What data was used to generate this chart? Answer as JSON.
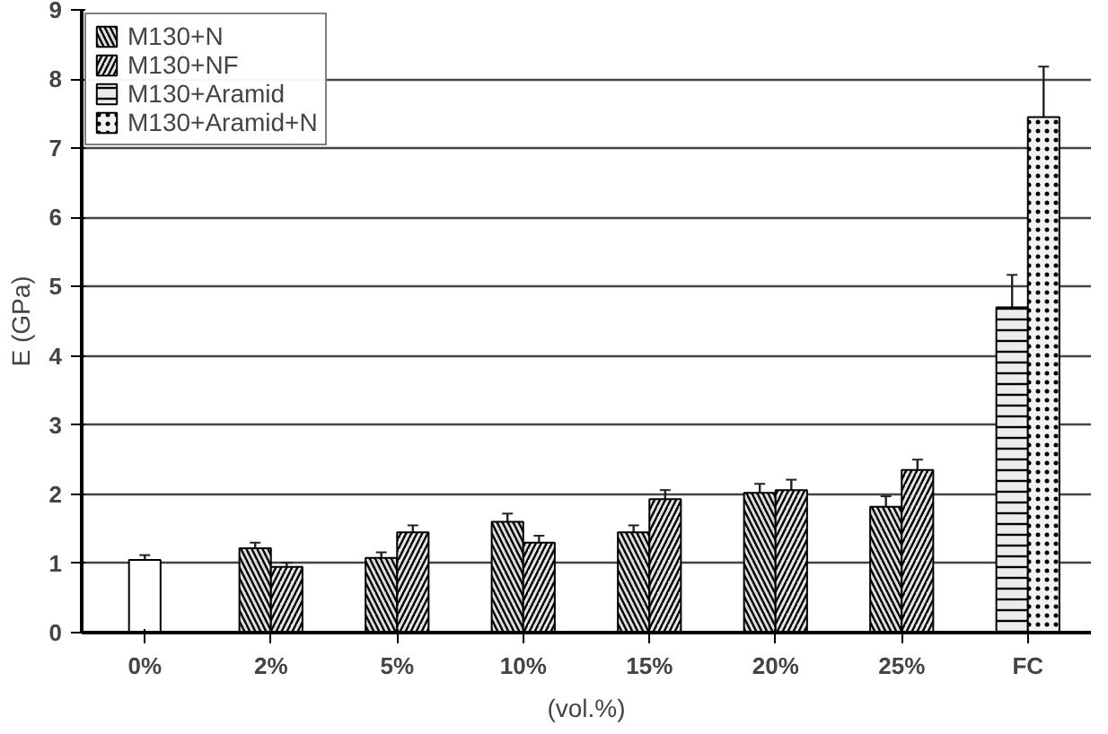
{
  "chart_data": {
    "type": "bar",
    "xlabel": "(vol.%)",
    "ylabel": "E (GPa)",
    "categories": [
      "0%",
      "2%",
      "5%",
      "10%",
      "15%",
      "20%",
      "25%",
      "FC"
    ],
    "series": [
      {
        "color": "#ffffff",
        "values": [
          1.05,
          null,
          null,
          null,
          null,
          null,
          null,
          null
        ],
        "errors": [
          0.07,
          null,
          null,
          null,
          null,
          null,
          null,
          null
        ]
      },
      {
        "name": "M130+N",
        "color": "#dcdcdc",
        "values": [
          null,
          1.22,
          1.08,
          1.6,
          1.45,
          2.02,
          1.82,
          null
        ],
        "errors": [
          null,
          0.08,
          0.08,
          0.12,
          0.1,
          0.13,
          0.15,
          null
        ]
      },
      {
        "name": "M130+NF",
        "color": "#e4e4e4",
        "values": [
          null,
          0.95,
          1.45,
          1.3,
          1.93,
          2.06,
          2.35,
          null
        ],
        "errors": [
          null,
          0.06,
          0.1,
          0.1,
          0.13,
          0.15,
          0.15,
          null
        ]
      },
      {
        "name": "M130+Aramid",
        "color": "#ececec",
        "values": [
          null,
          null,
          null,
          null,
          null,
          null,
          null,
          4.7
        ],
        "errors": [
          null,
          null,
          null,
          null,
          null,
          null,
          null,
          0.47
        ]
      },
      {
        "name": "M130+Aramid+N",
        "color": "#f2f2f2",
        "values": [
          null,
          null,
          null,
          null,
          null,
          null,
          null,
          7.45
        ],
        "errors": [
          null,
          null,
          null,
          null,
          null,
          null,
          null,
          0.73
        ]
      }
    ],
    "ylim": [
      0,
      9
    ],
    "yticks": [
      0,
      1,
      2,
      3,
      4,
      5,
      6,
      7,
      8,
      9
    ],
    "grid": "y",
    "legend": "top left"
  }
}
